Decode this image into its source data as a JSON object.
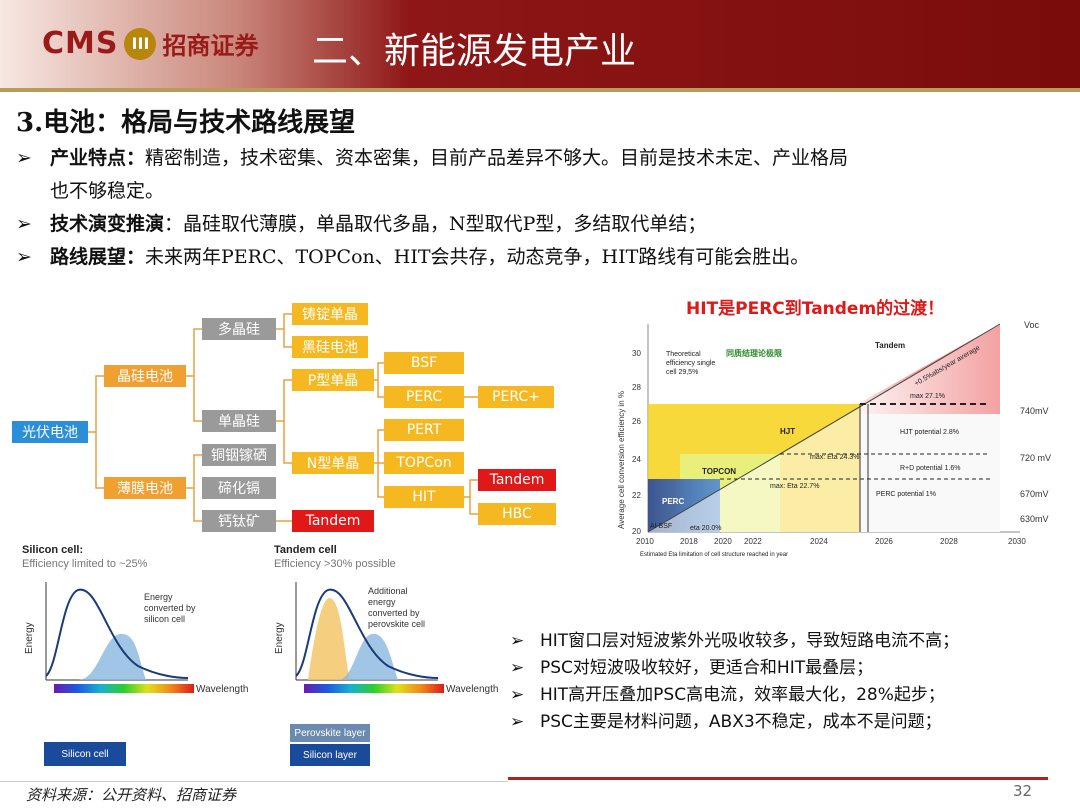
{
  "header": {
    "logo_cms": "CMS",
    "logo_mark": "III",
    "logo_cn": "招商证券",
    "title": "二、新能源发电产业"
  },
  "section_title": "3.电池：格局与技术路线展望",
  "bullets": [
    {
      "label": "产业特点：",
      "text": "精密制造，技术密集、资本密集，目前产品差异不够大。目前是技术未定、产业格局",
      "cont": "也不够稳定。"
    },
    {
      "label": "技术演变推演",
      "text": "：晶硅取代薄膜，单晶取代多晶，N型取代P型，多结取代单结；"
    },
    {
      "label": "路线展望：",
      "text": "未来两年PERC、TOPCon、HIT会共存，动态竞争，HIT路线有可能会胜出。"
    }
  ],
  "tree": {
    "root": "光伏电池",
    "crystal": "晶硅电池",
    "thinfilm": "薄膜电池",
    "poly": "多晶硅",
    "mono": "单晶硅",
    "ingot": "铸锭单晶",
    "black": "黑硅电池",
    "ptype": "P型单晶",
    "ntype": "N型单晶",
    "bsf": "BSF",
    "perc": "PERC",
    "percplus": "PERC+",
    "pert": "PERT",
    "topcon": "TOPCon",
    "hit": "HIT",
    "tandem": "Tandem",
    "hbc": "HBC",
    "cigs": "铜铟镓硒",
    "cdte": "碲化镉",
    "perovskite": "钙钛矿",
    "tandem2": "Tandem"
  },
  "hit_chart": {
    "headline": "HIT是PERC到Tandem的过渡！",
    "ylabel": "Average cell conversion efficiency in %",
    "voc_label": "Voc",
    "theoretical": "Theoretical efficiency single cell 29,5%",
    "heterojunction": "同质结理论极限",
    "slope": "+0.5%abs/year average",
    "regions": [
      "Tandem",
      "HJT",
      "TOPCON",
      "PERC",
      "Al-BSF"
    ],
    "annotations": [
      "max 27.1%",
      "HJT potential 2.8%",
      "max: Eta 24.3%",
      "R+D potential 1.6%",
      "max: Eta 22.7%",
      "PERC potential 1%",
      "eta 20.0%"
    ],
    "voc_values": [
      "740mV",
      "720 mV",
      "670mV",
      "630mV"
    ],
    "yticks": [
      "30",
      "28",
      "26",
      "24",
      "22",
      "20"
    ],
    "xticks": [
      "2010",
      "2018",
      "2020",
      "2022",
      "2024",
      "2026",
      "2028",
      "2030"
    ],
    "footnote": "Estimated Eta limitation of cell structure reached in year"
  },
  "spectra": {
    "silicon_title": "Silicon cell:",
    "silicon_sub": "Efficiency limited to ~25%",
    "silicon_note": "Energy converted by silicon cell",
    "tandem_title": "Tandem cell",
    "tandem_sub": "Efficiency >30% possible",
    "tandem_note": "Additional energy converted by perovskite cell",
    "ylabel": "Energy",
    "xlabel": "Wavelength",
    "silicon_layer": "Silicon cell",
    "perov_layer": "Perovskite layer",
    "silicon_layer2": "Silicon layer"
  },
  "notes": [
    "HIT窗口层对短波紫外光吸收较多，导致短路电流不高；",
    "PSC对短波吸收较好，更适合和HIT最叠层；",
    "HIT高开压叠加PSC高电流，效率最大化，28%起步；",
    "PSC主要是材料问题，ABX3不稳定，成本不是问题；"
  ],
  "footer": {
    "source": "资料来源：公开资料、招商证券",
    "page": "32"
  }
}
